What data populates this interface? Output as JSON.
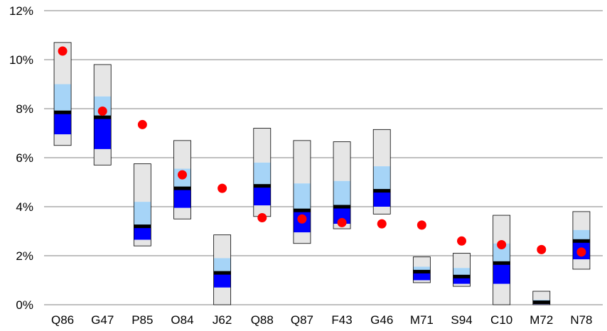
{
  "chart_data": {
    "type": "bar",
    "title": "",
    "xlabel": "",
    "ylabel": "",
    "ylim": [
      0,
      12
    ],
    "y_tick_values": [
      0,
      2,
      4,
      6,
      8,
      10,
      12
    ],
    "y_tick_labels": [
      "0%",
      "2%",
      "4%",
      "6%",
      "8%",
      "10%",
      "12%"
    ],
    "grid": "horizontal",
    "legend": "none",
    "colors": {
      "outer_band": "#e6e6e6",
      "mid_band": "#a6d4f7",
      "inner_band": "#0000ff",
      "median_line": "#000000",
      "box_outline": "#000000",
      "marker": "#ff0000",
      "gridline": "#808080"
    },
    "categories": [
      "Q86",
      "G47",
      "P85",
      "O84",
      "J62",
      "Q88",
      "Q87",
      "F43",
      "G46",
      "M71",
      "S94",
      "C10",
      "M72",
      "N78"
    ],
    "series": [
      {
        "values": [
          6.5,
          5.7,
          2.4,
          3.5,
          0.0,
          3.6,
          2.5,
          3.1,
          3.7,
          0.9,
          0.75,
          0.0,
          0.0,
          1.45
        ]
      },
      {
        "values": [
          6.95,
          6.35,
          2.65,
          3.95,
          0.7,
          4.05,
          2.95,
          3.3,
          4.0,
          1.0,
          0.85,
          0.85,
          0.02,
          1.85
        ]
      },
      {
        "values": [
          7.85,
          7.65,
          3.2,
          4.75,
          1.3,
          4.85,
          3.85,
          4.0,
          4.65,
          1.35,
          1.15,
          1.7,
          0.1,
          2.6
        ]
      },
      {
        "values": [
          9.0,
          8.5,
          4.2,
          5.55,
          1.9,
          5.8,
          4.95,
          5.05,
          5.65,
          1.55,
          1.5,
          2.5,
          0.2,
          3.05
        ]
      },
      {
        "values": [
          10.7,
          9.8,
          5.75,
          6.7,
          2.85,
          7.2,
          6.7,
          6.65,
          7.15,
          1.95,
          2.1,
          3.65,
          0.55,
          3.8
        ]
      },
      {
        "values": [
          10.35,
          7.9,
          7.35,
          5.3,
          4.75,
          3.55,
          3.5,
          3.35,
          3.3,
          3.25,
          2.6,
          2.45,
          2.25,
          2.15
        ]
      }
    ]
  }
}
